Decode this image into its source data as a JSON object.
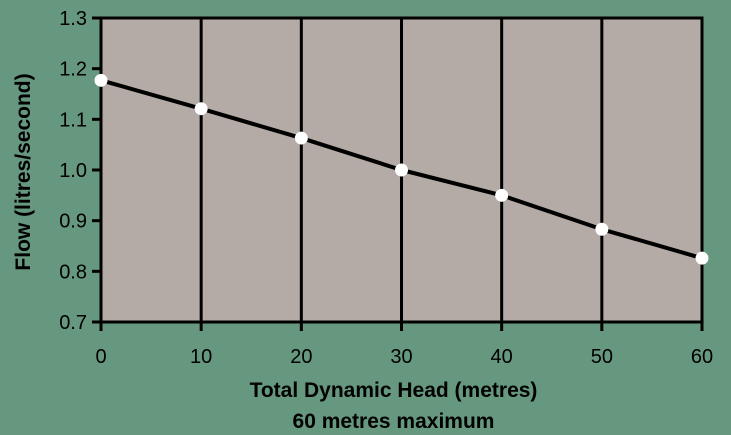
{
  "chart_data": {
    "type": "line",
    "title": "",
    "xlabel": "Total Dynamic Head (metres)",
    "xlabel_sub": "60 metres maximum",
    "ylabel": "Flow (litres/second)",
    "xlim": [
      0,
      60
    ],
    "ylim": [
      0.7,
      1.3
    ],
    "x_ticks": [
      "0",
      "10",
      "20",
      "30",
      "40",
      "50",
      "60"
    ],
    "y_ticks": [
      "0.7",
      "0.8",
      "0.9",
      "1.0",
      "1.1",
      "1.2",
      "1.3"
    ],
    "grid": "vertical",
    "series": [
      {
        "x": [
          0,
          10,
          20,
          30,
          40,
          50,
          60
        ],
        "values": [
          1.177,
          1.121,
          1.063,
          1.0,
          0.95,
          0.883,
          0.826
        ]
      }
    ],
    "colors": {
      "background": "#66977f",
      "plot_area": "#b5aba6",
      "line": "#000000",
      "marker": "#ffffff"
    }
  }
}
